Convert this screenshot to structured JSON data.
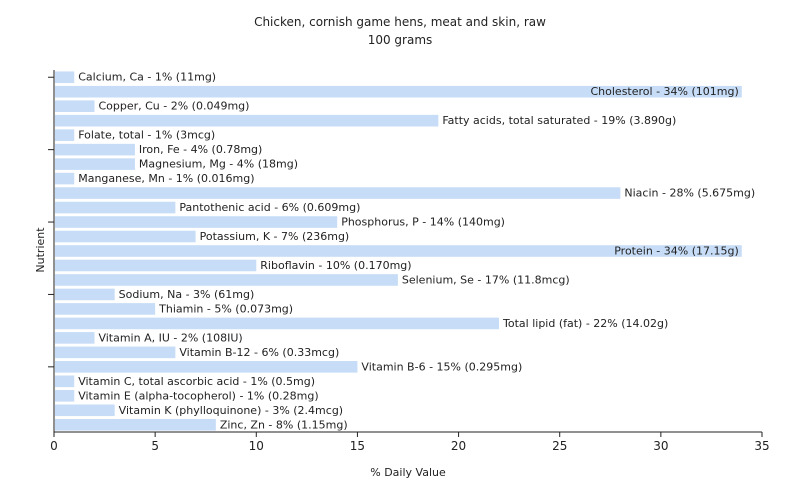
{
  "chart_data": {
    "type": "bar",
    "orientation": "horizontal",
    "title": "Chicken, cornish game hens, meat and skin, raw",
    "subtitle": "100 grams",
    "xlabel": "% Daily Value",
    "ylabel": "Nutrient",
    "xlim": [
      0,
      35
    ],
    "xticks": [
      "0",
      "5",
      "10",
      "15",
      "20",
      "25",
      "30",
      "35"
    ],
    "grid": false,
    "bar_color": "#c6dcf7",
    "categories": [
      "Calcium, Ca - 1% (11mg)",
      "Cholesterol - 34% (101mg)",
      "Copper, Cu - 2% (0.049mg)",
      "Fatty acids, total saturated - 19% (3.890g)",
      "Folate, total - 1% (3mcg)",
      "Iron, Fe - 4% (0.78mg)",
      "Magnesium, Mg - 4% (18mg)",
      "Manganese, Mn - 1% (0.016mg)",
      "Niacin - 28% (5.675mg)",
      "Pantothenic acid - 6% (0.609mg)",
      "Phosphorus, P - 14% (140mg)",
      "Potassium, K - 7% (236mg)",
      "Protein - 34% (17.15g)",
      "Riboflavin - 10% (0.170mg)",
      "Selenium, Se - 17% (11.8mcg)",
      "Sodium, Na - 3% (61mg)",
      "Thiamin - 5% (0.073mg)",
      "Total lipid (fat) - 22% (14.02g)",
      "Vitamin A, IU - 2% (108IU)",
      "Vitamin B-12 - 6% (0.33mcg)",
      "Vitamin B-6 - 15% (0.295mg)",
      "Vitamin C, total ascorbic acid - 1% (0.5mg)",
      "Vitamin E (alpha-tocopherol) - 1% (0.28mg)",
      "Vitamin K (phylloquinone) - 3% (2.4mcg)",
      "Zinc, Zn - 8% (1.15mg)"
    ],
    "values": [
      1,
      34,
      2,
      19,
      1,
      4,
      4,
      1,
      28,
      6,
      14,
      7,
      34,
      10,
      17,
      3,
      5,
      22,
      2,
      6,
      15,
      1,
      1,
      3,
      8
    ]
  }
}
